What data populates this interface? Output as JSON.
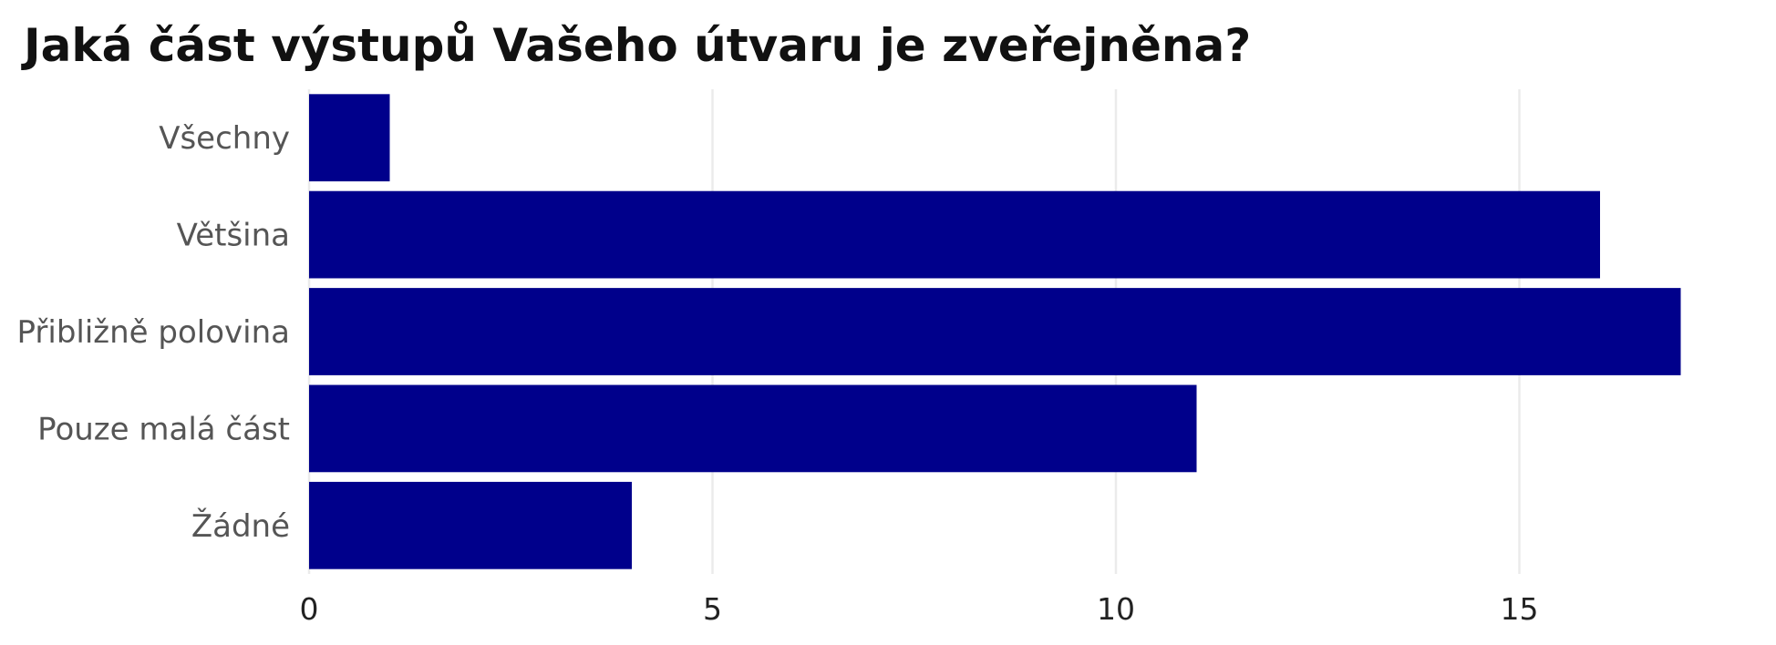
{
  "chart_data": {
    "type": "bar",
    "orientation": "horizontal",
    "title": "Jaká část výstupů Vašeho útvaru je zveřejněna?",
    "categories": [
      "Všechny",
      "Většina",
      "Přibližně polovina",
      "Pouze malá část",
      "Žádné"
    ],
    "values": [
      1,
      16,
      17,
      11,
      4
    ],
    "xlabel": "",
    "ylabel": "",
    "xlim": [
      0,
      17.8
    ],
    "x_ticks": [
      0,
      5,
      10,
      15
    ],
    "grid": true,
    "legend": "none",
    "bar_color": "#00008b"
  }
}
